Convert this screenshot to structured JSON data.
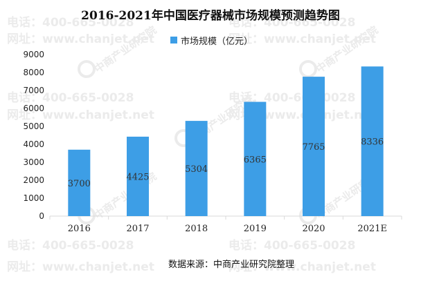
{
  "chart_data": {
    "type": "bar",
    "title": "2016-2021年中国医疗器械市场规模预测趋势图",
    "categories": [
      "2016",
      "2017",
      "2018",
      "2019",
      "2020",
      "2021E"
    ],
    "series": [
      {
        "name": "市场规模（亿元）",
        "values": [
          3700,
          4425,
          5304,
          6365,
          7765,
          8336
        ],
        "color": "#3d9ee6"
      }
    ],
    "data_labels": [
      "3700",
      "4425",
      "5304",
      "6365",
      "7765",
      "8336"
    ],
    "ylim": [
      0,
      9000
    ],
    "yticks": [
      "0",
      "1000",
      "2000",
      "3000",
      "4000",
      "5000",
      "6000",
      "7000",
      "8000",
      "9000"
    ],
    "xlabel": "",
    "ylabel": "",
    "grid": false,
    "legend_position": "top-center"
  },
  "source": "数据来源：中商产业研究院整理",
  "watermark": {
    "phone": "电话：400-665-0028",
    "site": "网址：www.chanjet.net",
    "brand": "中商产业研究院",
    "icon": "circle-logo-icon"
  },
  "colors": {
    "bar": "#3d9ee6",
    "axis": "#d9d9d9",
    "text": "#222222",
    "watermark": "#ebebeb"
  }
}
